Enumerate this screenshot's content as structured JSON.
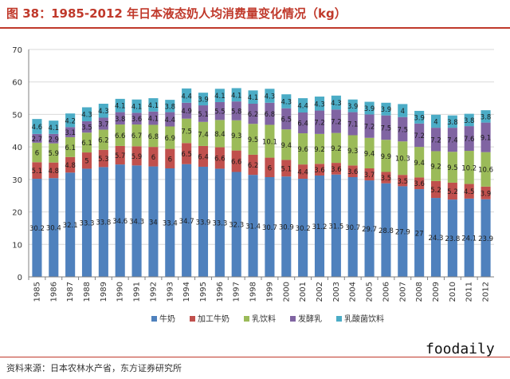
{
  "title": "图 38：1985-2012 年日本液态奶人均消费量变化情况（kg）",
  "source": "资料来源：日本农林水产省，东方证券研究所",
  "watermark": "foodaily",
  "chart_data": {
    "type": "bar",
    "stacked": true,
    "categories": [
      "1985",
      "1986",
      "1987",
      "1988",
      "1989",
      "1990",
      "1991",
      "1992",
      "1993",
      "1994",
      "1995",
      "1996",
      "1997",
      "1998",
      "1999",
      "2000",
      "2001",
      "2002",
      "2003",
      "2004",
      "2005",
      "2006",
      "2007",
      "2008",
      "2009",
      "2010",
      "2011",
      "2012"
    ],
    "series": [
      {
        "name": "牛奶",
        "color": "#4f81bd",
        "values": [
          30.2,
          30.4,
          32.1,
          33.3,
          33.8,
          34.6,
          34.3,
          34,
          33.4,
          34.7,
          33.9,
          33.3,
          32.3,
          31.4,
          30.7,
          30.9,
          30.2,
          31.2,
          31.5,
          30.7,
          29.7,
          28.8,
          27.9,
          27,
          24.3,
          23.8,
          24.1,
          23.9
        ],
        "labels": [
          "30.2",
          "30.4",
          "32.1",
          "33.3",
          "33.8",
          "34.6",
          "34.3",
          "34",
          "33.4",
          "34.7",
          "33.9",
          "33.3",
          "32.3",
          "31.4",
          "30.7",
          "30.9",
          "30.2",
          "31.2",
          "31.5",
          "30.7",
          "29.7",
          "28.8",
          "27.9",
          "27",
          "24.3",
          "23.8",
          "24.1",
          "23.9"
        ]
      },
      {
        "name": "加工牛奶",
        "color": "#c0504d",
        "values": [
          5.1,
          4.8,
          4.8,
          5,
          5.3,
          5.7,
          5.9,
          6,
          6,
          6.5,
          6.4,
          6.6,
          6.6,
          6.2,
          6,
          5.1,
          4.4,
          3.6,
          3.6,
          3.6,
          3.7,
          3.5,
          3.5,
          3.6,
          5.2,
          5.2,
          4.5,
          3.9
        ],
        "labels": [
          "5.1",
          "4.8",
          "4.8",
          "5",
          "5.3",
          "5.7",
          "5.9",
          "6",
          "6",
          "6.5",
          "6.4",
          "6.6",
          "6.6",
          "6.2",
          "6",
          "5.1",
          "4.4",
          "3.6",
          "3.6",
          "3.6",
          "3.7",
          "3.5",
          "3.5",
          "3.6",
          "5.2",
          "5.2",
          "4.5",
          "3.9"
        ]
      },
      {
        "name": "乳饮料",
        "color": "#9bbb59",
        "values": [
          6,
          5.9,
          6.1,
          6.1,
          6.2,
          6.6,
          6.7,
          6.8,
          6.9,
          7.5,
          7.4,
          8.4,
          9.3,
          9.5,
          10.1,
          9.4,
          9.6,
          9.2,
          9.2,
          9.3,
          9.4,
          9.9,
          10.3,
          9.4,
          9.2,
          9.5,
          10.2,
          10.6
        ],
        "labels": [
          "6",
          "5.9",
          "6.1",
          "6.1",
          "6.2",
          "6.6",
          "6.7",
          "6.8",
          "6.9",
          "7.5",
          "7.4",
          "8.4",
          "9.3",
          "9.5",
          "10.1",
          "9.4",
          "9.6",
          "9.2",
          "9.2",
          "9.3",
          "9.4",
          "9.9",
          "10.3",
          "9.4",
          "9.2",
          "9.5",
          "10.2",
          "10.6"
        ]
      },
      {
        "name": "发酵乳",
        "color": "#8064a2",
        "values": [
          2.7,
          2.9,
          3.1,
          3.5,
          3.7,
          3.8,
          3.6,
          4.1,
          4.4,
          4.9,
          5.1,
          5.5,
          5.8,
          6.2,
          6.8,
          6.5,
          6.4,
          7.2,
          7.2,
          7.1,
          7.2,
          7.5,
          7.5,
          7.2,
          7.2,
          7.4,
          7.6,
          9.1
        ],
        "labels": [
          "2.7",
          "2.9",
          "3.1",
          "3.5",
          "3.7",
          "3.8",
          "3.6",
          "4.1",
          "4.4",
          "4.9",
          "5.1",
          "5.5",
          "5.8",
          "6.2",
          "6.8",
          "6.5",
          "6.4",
          "7.2",
          "7.2",
          "7.1",
          "7.2",
          "7.5",
          "7.5",
          "7.2",
          "7.2",
          "7.4",
          "7.6",
          "9.1"
        ]
      },
      {
        "name": "乳酸菌饮料",
        "color": "#4bacc6",
        "values": [
          4.6,
          4.1,
          4.2,
          4.3,
          4.3,
          4.1,
          4.1,
          4.1,
          3.8,
          4.4,
          3.9,
          4.1,
          4.1,
          4.1,
          4.3,
          4.3,
          4.4,
          4.3,
          4.3,
          3.9,
          3.9,
          3.9,
          4,
          3.9,
          4,
          3.8,
          3.8,
          3.8
        ],
        "labels": [
          "4.6",
          "4.1",
          "4.2",
          "4.3",
          "4.3",
          "4.1",
          "4.1",
          "4.1",
          "3.8",
          "4.4",
          "3.9",
          "4.1",
          "4.1",
          "4.1",
          "4.3",
          "4.3",
          "4.4",
          "4.3",
          "4.3",
          "3.9",
          "3.9",
          "3.9",
          "4",
          "3.9",
          "4",
          "3.8",
          "3.8",
          "3.8"
        ]
      }
    ],
    "ylim": [
      0,
      70
    ],
    "yticks": [
      "0",
      "10",
      "20",
      "30",
      "40",
      "50",
      "60",
      "70"
    ],
    "grid": true,
    "legend": "bottom"
  }
}
